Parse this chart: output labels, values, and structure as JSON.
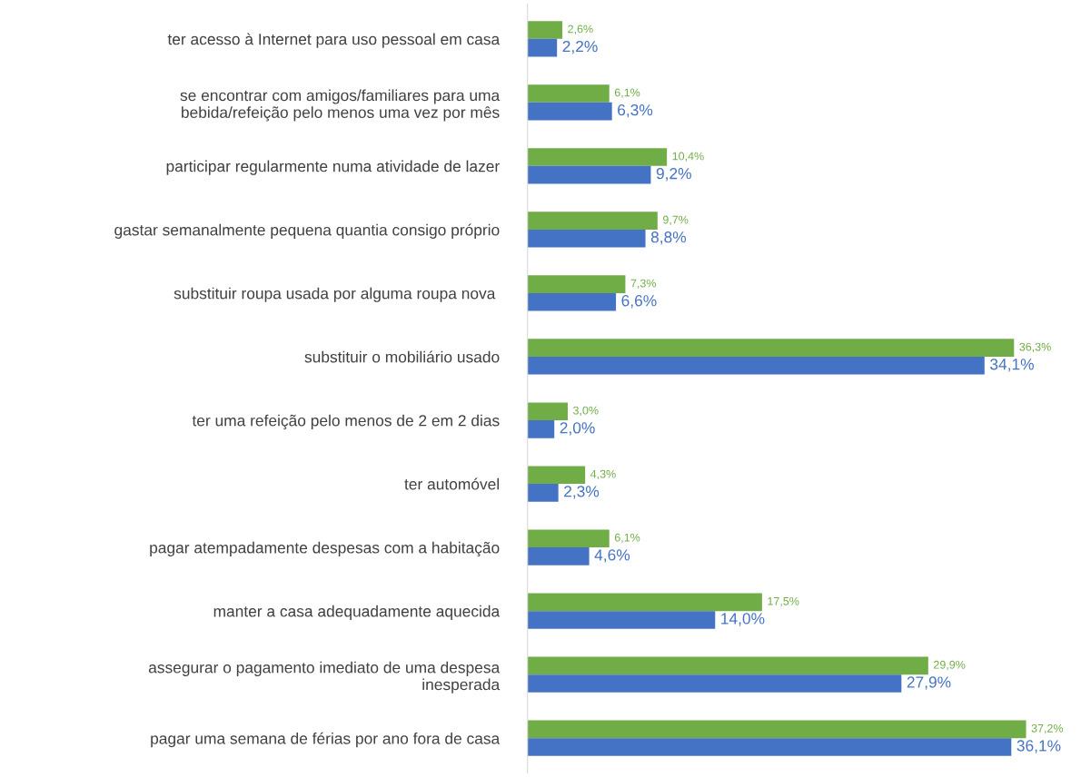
{
  "chart_data": {
    "type": "bar",
    "orientation": "horizontal",
    "categories": [
      "ter acesso à Internet para uso pessoal em casa",
      "se encontrar com amigos/familiares para uma\nbebida/refeição pelo menos uma vez por mês",
      "participar regularmente numa atividade de lazer",
      "gastar semanalmente pequena quantia consigo próprio",
      "substituir roupa usada por alguma roupa nova ",
      "substituir o mobiliário usado",
      "ter uma refeição pelo menos de 2 em 2 dias",
      "ter automóvel",
      "pagar atempadamente despesas com a habitação",
      "manter a casa adequadamente aquecida",
      "assegurar o pagamento imediato de uma despesa\ninesperada",
      "pagar uma semana de férias por ano fora de casa"
    ],
    "series": [
      {
        "color": "#70ad47",
        "values": [
          2.6,
          6.1,
          10.4,
          9.7,
          7.3,
          36.3,
          3.0,
          4.3,
          6.1,
          17.5,
          29.9,
          37.2
        ],
        "value_labels": [
          "2,6%",
          "6,1%",
          "10,4%",
          "9,7%",
          "7,3%",
          "36,3%",
          "3,0%",
          "4,3%",
          "6,1%",
          "17,5%",
          "29,9%",
          "37,2%"
        ]
      },
      {
        "color": "#4472c4",
        "values": [
          2.2,
          6.3,
          9.2,
          8.8,
          6.6,
          34.1,
          2.0,
          2.3,
          4.6,
          14.0,
          27.9,
          36.1
        ],
        "value_labels": [
          "2,2%",
          "6,3%",
          "9,2%",
          "8,8%",
          "6,6%",
          "34,1%",
          "2,0%",
          "2,3%",
          "4,6%",
          "14,0%",
          "27,9%",
          "36,1%"
        ]
      }
    ],
    "grid": false,
    "legend": false
  }
}
